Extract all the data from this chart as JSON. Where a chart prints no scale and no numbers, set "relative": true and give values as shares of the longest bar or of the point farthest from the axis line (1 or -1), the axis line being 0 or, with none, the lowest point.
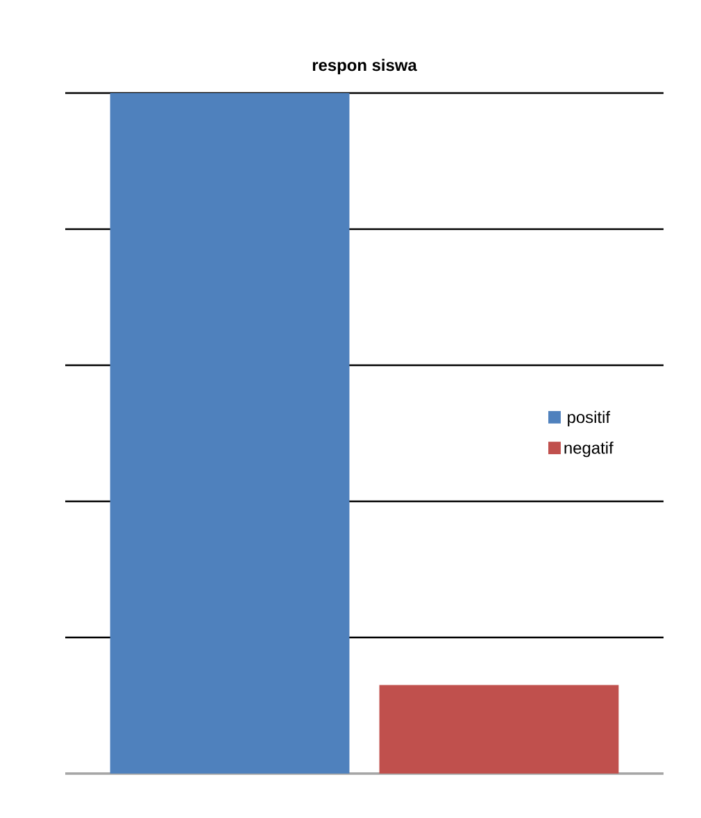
{
  "chart_data": {
    "type": "bar",
    "title": "respon siswa",
    "relative": true,
    "categories": [
      null
    ],
    "grid": "y",
    "legend": "right",
    "series": [
      {
        "name": "positif",
        "color": "#4f81bd",
        "values": [
          1
        ]
      },
      {
        "name": "negatif",
        "color": "#c0504d",
        "values": [
          0.13
        ]
      }
    ]
  }
}
